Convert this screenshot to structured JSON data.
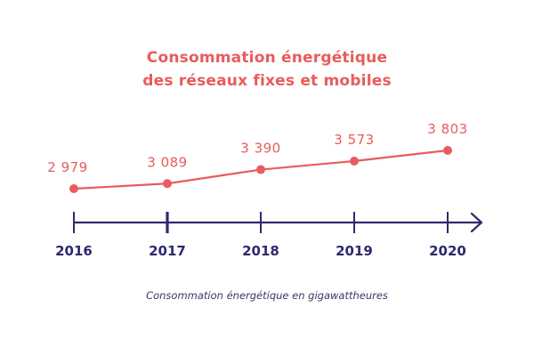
{
  "chart_data": {
    "type": "line",
    "title": [
      "Consommation énergétique",
      "des réseaux fixes et mobiles"
    ],
    "caption": "Consommation énergétique en gigawattheures",
    "xlabel": "",
    "ylabel": "",
    "categories": [
      "2016",
      "2017",
      "2018",
      "2019",
      "2020"
    ],
    "series": [
      {
        "name": "Consommation énergétique (GWh)",
        "values": [
          2979,
          3089,
          3390,
          3573,
          3803
        ],
        "labels": [
          "2 979",
          "3 089",
          "3 390",
          "3 573",
          "3 803"
        ]
      }
    ],
    "y_axis_visible": false,
    "grid": false,
    "legend": "none",
    "colors": {
      "line": "#e85c5c",
      "axis": "#2d2a6e",
      "title": "#e85c5c",
      "caption": "#3a3768"
    }
  }
}
